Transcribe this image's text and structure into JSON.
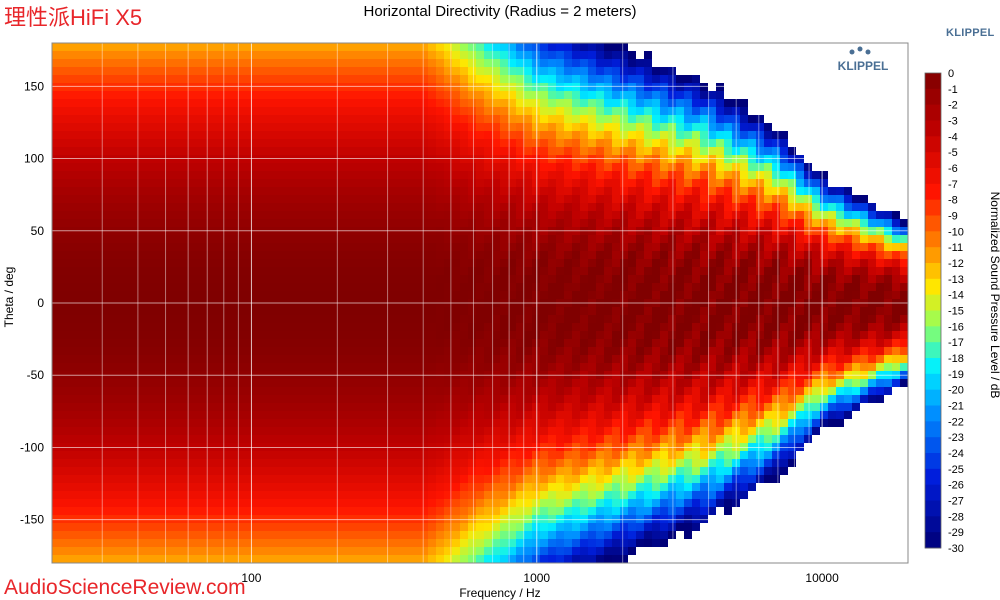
{
  "brand": "理性派HiFi X5",
  "klippel_label": "KLIPPEL",
  "watermark": "AudioScienceReview.com",
  "logo_text": "KLIPPEL",
  "chart_data": {
    "type": "heatmap",
    "title": "Horizontal Directivity (Radius = 2 meters)",
    "xlabel": "Frequency / Hz",
    "ylabel": "Theta / deg",
    "colorbar_label": "Normalized Sound Pressure Level / dB",
    "x_scale": "log",
    "xlim": [
      20,
      20000
    ],
    "ylim": [
      -180,
      180
    ],
    "x_ticks": [
      100,
      1000,
      10000
    ],
    "x_tick_labels": [
      "100",
      "1000",
      "10000"
    ],
    "y_ticks": [
      150,
      100,
      50,
      0,
      -50,
      -100,
      -150
    ],
    "y_tick_labels": [
      "150",
      "100",
      "50",
      "0",
      "-50",
      "-100",
      "-150"
    ],
    "colorbar_ticks": [
      0,
      -1,
      -2,
      -3,
      -4,
      -5,
      -6,
      -7,
      -8,
      -9,
      -10,
      -11,
      -12,
      -13,
      -14,
      -15,
      -16,
      -17,
      -18,
      -19,
      -20,
      -21,
      -22,
      -23,
      -24,
      -25,
      -26,
      -27,
      -28,
      -29,
      -30
    ],
    "colorbar_tick_labels": [
      "0",
      "-1",
      "-2",
      "-3",
      "-4",
      "-5",
      "-6",
      "-7",
      "-8",
      "-9",
      "-10",
      "-11",
      "-12",
      "-13",
      "-14",
      "-15",
      "-16",
      "-17",
      "-18",
      "-19",
      "-20",
      "-21",
      "-22",
      "-23",
      "-24",
      "-25",
      "-26",
      "-27",
      "-28",
      "-29",
      "-30"
    ],
    "clim": [
      -30,
      0
    ],
    "grid": true,
    "beam_profile": [
      {
        "freq": 20,
        "beamwidth_deg": 180
      },
      {
        "freq": 400,
        "beamwidth_deg": 180
      },
      {
        "freq": 600,
        "beamwidth_deg": 150
      },
      {
        "freq": 1000,
        "beamwidth_deg": 125
      },
      {
        "freq": 2000,
        "beamwidth_deg": 110
      },
      {
        "freq": 4000,
        "beamwidth_deg": 95
      },
      {
        "freq": 7000,
        "beamwidth_deg": 75
      },
      {
        "freq": 10000,
        "beamwidth_deg": 55
      },
      {
        "freq": 20000,
        "beamwidth_deg": 35
      }
    ]
  }
}
